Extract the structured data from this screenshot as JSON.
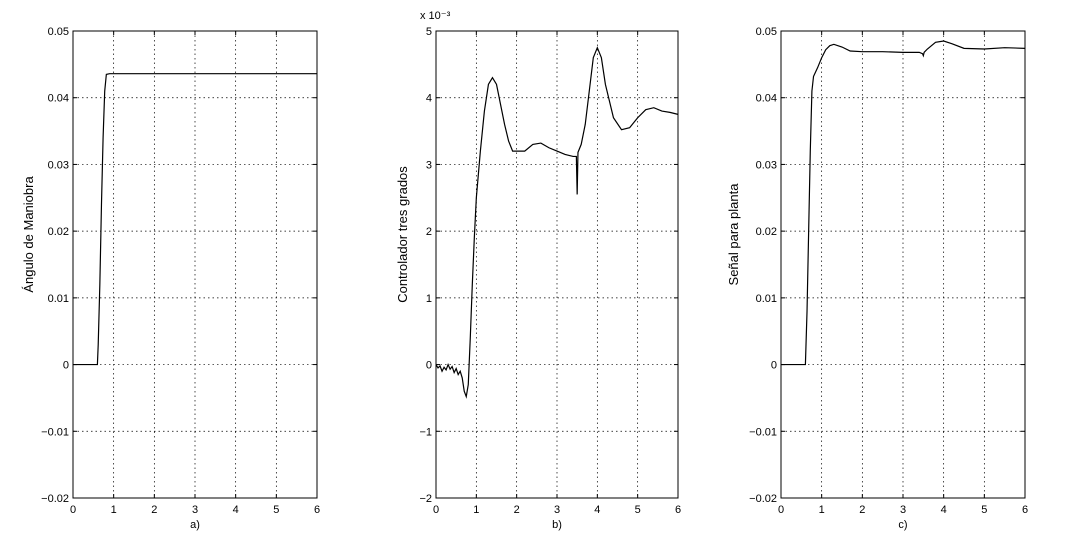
{
  "chart_data": [
    {
      "type": "line",
      "title": "",
      "xlabel": "a)",
      "ylabel": "Ángulo de Maniobra",
      "xlim": [
        0,
        6
      ],
      "ylim": [
        -0.02,
        0.05
      ],
      "xticks": [
        0,
        1,
        2,
        3,
        4,
        5,
        6
      ],
      "xtick_labels": [
        "0",
        "1",
        "2",
        "3",
        "4",
        "5",
        "6"
      ],
      "yticks": [
        -0.02,
        -0.01,
        0,
        0.01,
        0.02,
        0.03,
        0.04,
        0.05
      ],
      "ytick_labels": [
        "−0.02",
        "−0.01",
        "0",
        "0.01",
        "0.02",
        "0.03",
        "0.04",
        "0.05"
      ],
      "exponent_label": "",
      "grid": true,
      "series": [
        {
          "x": [
            0,
            0.6,
            0.62,
            0.66,
            0.7,
            0.74,
            0.78,
            0.82,
            0.9,
            1.0,
            2.0,
            3.0,
            4.0,
            5.0,
            6.0
          ],
          "y": [
            0,
            0,
            0.003,
            0.012,
            0.024,
            0.034,
            0.041,
            0.0435,
            0.0436,
            0.0436,
            0.0436,
            0.0436,
            0.0436,
            0.0436,
            0.0436
          ]
        }
      ]
    },
    {
      "type": "line",
      "title": "",
      "xlabel": "b)",
      "ylabel": "Controlador tres grados",
      "xlim": [
        0,
        6
      ],
      "ylim": [
        -2,
        5
      ],
      "xticks": [
        0,
        1,
        2,
        3,
        4,
        5,
        6
      ],
      "xtick_labels": [
        "0",
        "1",
        "2",
        "3",
        "4",
        "5",
        "6"
      ],
      "yticks": [
        -2,
        -1,
        0,
        1,
        2,
        3,
        4,
        5
      ],
      "ytick_labels": [
        "−2",
        "−1",
        "0",
        "1",
        "2",
        "3",
        "4",
        "5"
      ],
      "exponent_label": "x 10⁻³",
      "grid": true,
      "series": [
        {
          "x": [
            0,
            0.05,
            0.1,
            0.15,
            0.2,
            0.25,
            0.3,
            0.35,
            0.4,
            0.45,
            0.5,
            0.55,
            0.6,
            0.65,
            0.7,
            0.75,
            0.8,
            0.85,
            0.9,
            0.95,
            1.0,
            1.1,
            1.2,
            1.3,
            1.4,
            1.5,
            1.6,
            1.7,
            1.8,
            1.9,
            2.0,
            2.2,
            2.4,
            2.6,
            2.8,
            3.0,
            3.2,
            3.4,
            3.48,
            3.5,
            3.52,
            3.6,
            3.7,
            3.8,
            3.9,
            4.0,
            4.1,
            4.2,
            4.4,
            4.6,
            4.8,
            5.0,
            5.2,
            5.4,
            5.6,
            5.8,
            6.0
          ],
          "y": [
            0,
            -0.05,
            -0.02,
            -0.1,
            -0.04,
            -0.08,
            0,
            -0.07,
            -0.03,
            -0.12,
            -0.06,
            -0.15,
            -0.1,
            -0.2,
            -0.4,
            -0.48,
            -0.3,
            0.4,
            1.2,
            1.9,
            2.5,
            3.2,
            3.8,
            4.2,
            4.3,
            4.2,
            3.9,
            3.6,
            3.35,
            3.2,
            3.2,
            3.2,
            3.3,
            3.32,
            3.25,
            3.2,
            3.15,
            3.12,
            3.12,
            2.55,
            3.18,
            3.3,
            3.6,
            4.1,
            4.6,
            4.75,
            4.6,
            4.2,
            3.7,
            3.52,
            3.55,
            3.7,
            3.82,
            3.85,
            3.8,
            3.78,
            3.75
          ]
        }
      ]
    },
    {
      "type": "line",
      "title": "",
      "xlabel": "c)",
      "ylabel": "Señal para planta",
      "xlim": [
        0,
        6
      ],
      "ylim": [
        -0.02,
        0.05
      ],
      "xticks": [
        0,
        1,
        2,
        3,
        4,
        5,
        6
      ],
      "xtick_labels": [
        "0",
        "1",
        "2",
        "3",
        "4",
        "5",
        "6"
      ],
      "yticks": [
        -0.02,
        -0.01,
        0,
        0.01,
        0.02,
        0.03,
        0.04,
        0.05
      ],
      "ytick_labels": [
        "−0.02",
        "−0.01",
        "0",
        "0.01",
        "0.02",
        "0.03",
        "0.04",
        "0.05"
      ],
      "exponent_label": "",
      "grid": true,
      "series": [
        {
          "x": [
            0,
            0.6,
            0.64,
            0.68,
            0.72,
            0.76,
            0.8,
            0.9,
            1.0,
            1.1,
            1.2,
            1.3,
            1.5,
            1.7,
            2.0,
            2.5,
            3.0,
            3.4,
            3.48,
            3.5,
            3.52,
            3.6,
            3.8,
            4.0,
            4.2,
            4.5,
            5.0,
            5.5,
            6.0
          ],
          "y": [
            0,
            0,
            0.008,
            0.02,
            0.032,
            0.041,
            0.0432,
            0.0445,
            0.046,
            0.0472,
            0.0478,
            0.048,
            0.0476,
            0.047,
            0.0469,
            0.0469,
            0.0468,
            0.0468,
            0.0466,
            0.0463,
            0.0468,
            0.0473,
            0.0483,
            0.0485,
            0.0481,
            0.0474,
            0.0473,
            0.0475,
            0.0474
          ]
        }
      ]
    }
  ]
}
